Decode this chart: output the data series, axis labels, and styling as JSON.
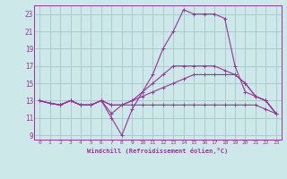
{
  "background_color": "#cce8e8",
  "grid_color": "#aacccc",
  "line_color": "#993399",
  "xlim": [
    -0.5,
    23.5
  ],
  "ylim": [
    8.5,
    24.0
  ],
  "xticks": [
    0,
    1,
    2,
    3,
    4,
    5,
    6,
    7,
    8,
    9,
    10,
    11,
    12,
    13,
    14,
    15,
    16,
    17,
    18,
    19,
    20,
    21,
    22,
    23
  ],
  "yticks": [
    9,
    11,
    13,
    15,
    17,
    19,
    21,
    23
  ],
  "xlabel": "Windchill (Refroidissement éolien,°C)",
  "lines": [
    {
      "x": [
        0,
        1,
        2,
        3,
        4,
        5,
        6,
        7,
        8,
        9,
        10,
        11,
        12,
        13,
        14,
        15,
        16,
        17,
        18,
        19,
        20,
        21,
        22,
        23
      ],
      "y": [
        13,
        12.7,
        12.5,
        13,
        12.5,
        12.5,
        13,
        11,
        9,
        12,
        14,
        16,
        19,
        21,
        23.5,
        23,
        23,
        23,
        22.5,
        17,
        14,
        13.5,
        13,
        11.5
      ]
    },
    {
      "x": [
        0,
        1,
        2,
        3,
        4,
        5,
        6,
        7,
        8,
        9,
        10,
        11,
        12,
        13,
        14,
        15,
        16,
        17,
        18,
        19,
        20,
        21,
        22,
        23
      ],
      "y": [
        13,
        12.7,
        12.5,
        13,
        12.5,
        12.5,
        13,
        11.5,
        12.5,
        13,
        14,
        15,
        16,
        17,
        17,
        17,
        17,
        17,
        16.5,
        16,
        15,
        13.5,
        13,
        11.5
      ]
    },
    {
      "x": [
        0,
        1,
        2,
        3,
        4,
        5,
        6,
        7,
        8,
        9,
        10,
        11,
        12,
        13,
        14,
        15,
        16,
        17,
        18,
        19,
        20,
        21,
        22,
        23
      ],
      "y": [
        13,
        12.7,
        12.5,
        13,
        12.5,
        12.5,
        13,
        12.5,
        12.5,
        13,
        13.5,
        14,
        14.5,
        15,
        15.5,
        16,
        16,
        16,
        16,
        16,
        15,
        13.5,
        13,
        11.5
      ]
    },
    {
      "x": [
        0,
        1,
        2,
        3,
        4,
        5,
        6,
        7,
        8,
        9,
        10,
        11,
        12,
        13,
        14,
        15,
        16,
        17,
        18,
        19,
        20,
        21,
        22,
        23
      ],
      "y": [
        13,
        12.7,
        12.5,
        13,
        12.5,
        12.5,
        13,
        12.5,
        12.5,
        12.5,
        12.5,
        12.5,
        12.5,
        12.5,
        12.5,
        12.5,
        12.5,
        12.5,
        12.5,
        12.5,
        12.5,
        12.5,
        12,
        11.5
      ]
    }
  ]
}
